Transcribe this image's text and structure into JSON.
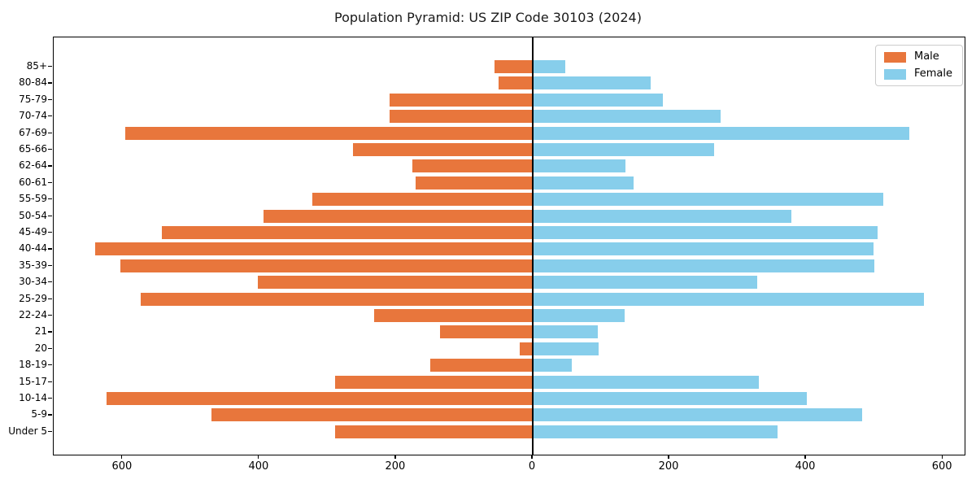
{
  "title": "Population Pyramid: US ZIP Code 30103 (2024)",
  "chart_data": {
    "type": "bar",
    "subtype": "population-pyramid",
    "orientation": "horizontal",
    "title": "Population Pyramid: US ZIP Code 30103 (2024)",
    "categories_top_to_bottom": [
      "85+",
      "80-84",
      "75-79",
      "70-74",
      "67-69",
      "65-66",
      "62-64",
      "60-61",
      "55-59",
      "50-54",
      "45-49",
      "40-44",
      "35-39",
      "30-34",
      "25-29",
      "22-24",
      "21",
      "20",
      "18-19",
      "15-17",
      "10-14",
      "5-9",
      "Under 5"
    ],
    "series": [
      {
        "name": "Male",
        "side": "left",
        "color": "#e8763c",
        "values": [
          56,
          50,
          209,
          210,
          596,
          263,
          176,
          171,
          323,
          394,
          543,
          640,
          604,
          402,
          574,
          232,
          136,
          19,
          150,
          289,
          624,
          470,
          289
        ]
      },
      {
        "name": "Female",
        "side": "right",
        "color": "#87ceeb",
        "values": [
          48,
          173,
          190,
          275,
          551,
          266,
          136,
          148,
          513,
          379,
          505,
          499,
          500,
          328,
          573,
          135,
          95,
          96,
          57,
          331,
          401,
          482,
          358
        ]
      }
    ],
    "x_axis": {
      "tick_values": [
        -600,
        -400,
        -200,
        0,
        200,
        400,
        600
      ],
      "tick_labels": [
        "600",
        "400",
        "200",
        "0",
        "200",
        "400",
        "600"
      ],
      "xlim": [
        -701,
        632
      ]
    },
    "y_axis": {
      "tick_labels": [
        "85+",
        "80-84",
        "75-79",
        "70-74",
        "67-69",
        "65-66",
        "62-64",
        "60-61",
        "55-59",
        "50-54",
        "45-49",
        "40-44",
        "35-39",
        "30-34",
        "25-29",
        "22-24",
        "21",
        "20",
        "18-19",
        "15-17",
        "10-14",
        "5-9",
        "Under 5"
      ]
    },
    "legend": {
      "position": "upper-right",
      "labels": [
        "Male",
        "Female"
      ]
    },
    "colors": {
      "male": "#e8763c",
      "female": "#87ceeb",
      "centerline": "#000000",
      "background": "#ffffff"
    },
    "grid": false
  }
}
